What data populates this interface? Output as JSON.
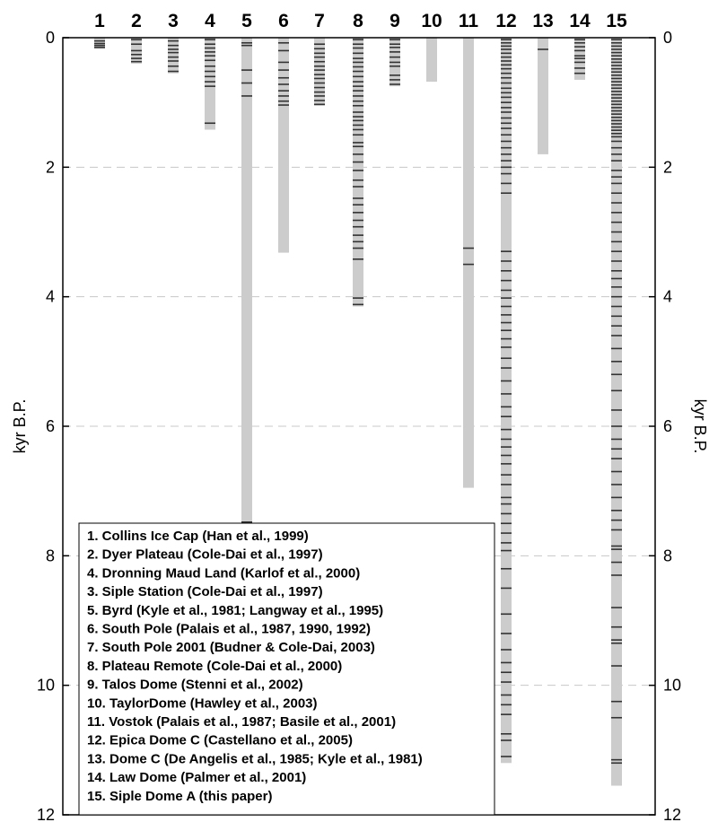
{
  "chart_data": {
    "type": "bar",
    "title": "",
    "y_axis": {
      "label_left": "kyr B.P.",
      "label_right": "kyr B.P.",
      "range": [
        0,
        12
      ],
      "ticks": [
        0,
        2,
        4,
        6,
        8,
        10,
        12
      ],
      "inverted": true,
      "grid": "dashed at 2, 4, 6, 8, 10"
    },
    "columns": [
      "1",
      "2",
      "3",
      "4",
      "5",
      "6",
      "7",
      "8",
      "9",
      "10",
      "11",
      "12",
      "13",
      "14",
      "15"
    ],
    "legend": [
      "1. Collins Ice Cap (Han et al., 1999)",
      "2. Dyer Plateau (Cole-Dai et al., 1997)",
      "4. Dronning Maud Land (Karlof et al., 2000)",
      "3. Siple Station (Cole-Dai et al., 1997)",
      "5. Byrd (Kyle et al., 1981; Langway et al., 1995)",
      "6. South Pole (Palais et al., 1987, 1990, 1992)",
      "7. South Pole 2001 (Budner & Cole-Dai, 2003)",
      "8. Plateau Remote (Cole-Dai et al., 2000)",
      "9. Talos Dome (Stenni et al., 2002)",
      "10. TaylorDome (Hawley et al., 2003)",
      "11. Vostok (Palais et al., 1987; Basile et al., 2001)",
      "12. Epica Dome C (Castellano et al., 2005)",
      "13. Dome C (De Angelis et al., 1985; Kyle et al., 1981)",
      "14. Law Dome (Palmer et al., 2001)",
      "15. Siple Dome A (this paper)"
    ],
    "legend_placement": "bottom-left",
    "series": [
      {
        "column": "1",
        "record_end_kyr": 0.17,
        "events_kyr": [
          0.05,
          0.09,
          0.12,
          0.15
        ]
      },
      {
        "column": "2",
        "record_end_kyr": 0.4,
        "events_kyr": [
          0.03,
          0.1,
          0.2,
          0.26,
          0.32,
          0.37
        ]
      },
      {
        "column": "3",
        "record_end_kyr": 0.55,
        "events_kyr": [
          0.05,
          0.12,
          0.18,
          0.23,
          0.3,
          0.36,
          0.44,
          0.52
        ]
      },
      {
        "column": "4",
        "record_end_kyr": 1.42,
        "events_kyr": [
          0.03,
          0.1,
          0.16,
          0.22,
          0.28,
          0.35,
          0.44,
          0.52,
          0.6,
          0.68,
          0.75,
          1.32
        ]
      },
      {
        "column": "5",
        "record_end_kyr": 7.55,
        "events_kyr": [
          0.08,
          0.12,
          0.5,
          0.7,
          0.9,
          7.48
        ]
      },
      {
        "column": "6",
        "record_end_kyr": 3.32,
        "events_kyr": [
          0.08,
          0.2,
          0.38,
          0.5,
          0.62,
          0.72,
          0.82,
          0.9,
          0.98,
          1.04
        ]
      },
      {
        "column": "7",
        "record_end_kyr": 1.05,
        "events_kyr": [
          0.1,
          0.17,
          0.24,
          0.3,
          0.37,
          0.44,
          0.5,
          0.57,
          0.63,
          0.7,
          0.77,
          0.84,
          0.9,
          0.97,
          1.03
        ]
      },
      {
        "column": "8",
        "record_end_kyr": 4.15,
        "events_kyr": [
          0.03,
          0.1,
          0.16,
          0.24,
          0.32,
          0.38,
          0.45,
          0.52,
          0.6,
          0.68,
          0.75,
          0.82,
          0.9,
          0.98,
          1.05,
          1.15,
          1.22,
          1.28,
          1.35,
          1.42,
          1.5,
          1.62,
          1.68,
          1.8,
          1.92,
          2.05,
          2.2,
          2.3,
          2.48,
          2.58,
          2.7,
          2.82,
          2.92,
          3.05,
          3.15,
          3.25,
          3.42,
          4.02,
          4.12
        ]
      },
      {
        "column": "9",
        "record_end_kyr": 0.75,
        "events_kyr": [
          0.03,
          0.1,
          0.15,
          0.22,
          0.3,
          0.38,
          0.44,
          0.58,
          0.65,
          0.72
        ]
      },
      {
        "column": "10",
        "record_end_kyr": 0.68,
        "events_kyr": []
      },
      {
        "column": "11",
        "record_end_kyr": 6.95,
        "events_kyr": [
          3.25,
          3.5
        ]
      },
      {
        "column": "12",
        "record_end_kyr": 11.2,
        "events_kyr": [
          0.03,
          0.08,
          0.13,
          0.18,
          0.24,
          0.3,
          0.36,
          0.42,
          0.48,
          0.55,
          0.62,
          0.7,
          0.78,
          0.85,
          0.92,
          1.0,
          1.08,
          1.15,
          1.24,
          1.32,
          1.4,
          1.5,
          1.6,
          1.7,
          1.8,
          1.9,
          2.0,
          2.1,
          2.25,
          2.4,
          3.3,
          3.45,
          3.6,
          3.75,
          3.9,
          4.02,
          4.15,
          4.28,
          4.4,
          4.52,
          4.65,
          4.78,
          4.95,
          5.1,
          5.3,
          5.5,
          5.7,
          5.85,
          6.05,
          6.2,
          6.32,
          6.45,
          6.58,
          6.75,
          6.9,
          7.1,
          7.2,
          7.35,
          7.5,
          7.65,
          7.8,
          7.92,
          8.2,
          8.5,
          8.9,
          9.2,
          9.45,
          9.65,
          9.8,
          9.95,
          10.15,
          10.3,
          10.45,
          10.75,
          10.85,
          11.1
        ]
      },
      {
        "column": "13",
        "record_end_kyr": 1.8,
        "events_kyr": [
          0.18
        ]
      },
      {
        "column": "14",
        "record_end_kyr": 0.65,
        "events_kyr": [
          0.03,
          0.08,
          0.14,
          0.2,
          0.28,
          0.32,
          0.38,
          0.47,
          0.55
        ]
      },
      {
        "column": "15",
        "record_end_kyr": 11.55,
        "events_kyr": [
          0.03,
          0.08,
          0.13,
          0.18,
          0.23,
          0.28,
          0.33,
          0.38,
          0.43,
          0.48,
          0.53,
          0.58,
          0.63,
          0.68,
          0.73,
          0.78,
          0.83,
          0.88,
          0.93,
          0.98,
          1.03,
          1.08,
          1.13,
          1.18,
          1.23,
          1.28,
          1.33,
          1.38,
          1.43,
          1.48,
          1.53,
          1.6,
          1.7,
          1.8,
          1.9,
          2.05,
          2.15,
          2.25,
          2.4,
          2.55,
          2.7,
          2.85,
          3.0,
          3.15,
          3.3,
          3.45,
          3.6,
          3.72,
          3.85,
          4.0,
          4.15,
          4.3,
          4.45,
          4.6,
          4.8,
          5.0,
          5.2,
          5.45,
          5.75,
          6.0,
          6.2,
          6.35,
          6.5,
          6.7,
          6.9,
          7.1,
          7.3,
          7.45,
          7.6,
          7.85,
          7.9,
          8.1,
          8.3,
          8.8,
          9.1,
          9.3,
          9.35,
          9.7,
          10.25,
          10.5,
          11.15,
          11.2
        ]
      }
    ]
  }
}
